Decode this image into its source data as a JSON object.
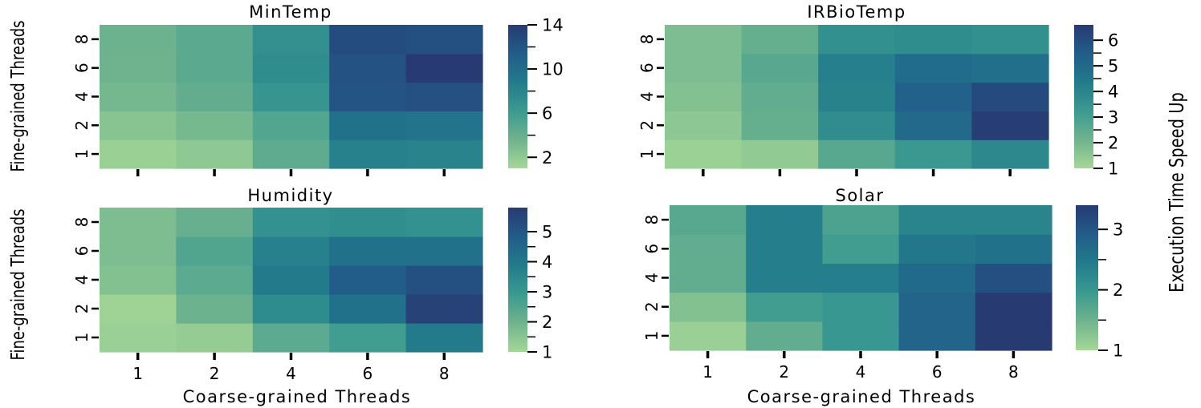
{
  "figure": {
    "common_xlabel": "Coarse-grained Threads",
    "common_ylabel": "Fine-grained Threads",
    "colorbar_label": "Execution Time Speed Up",
    "colormap": "crest",
    "colormap_stops": [
      "#a5d797",
      "#6fb38e",
      "#3a9a90",
      "#227b8b",
      "#225c8a",
      "#273b72"
    ]
  },
  "chart_data": [
    {
      "type": "heatmap",
      "title": "MinTemp",
      "x_categories": [
        "1",
        "2",
        "4",
        "6",
        "8"
      ],
      "y_categories": [
        "1",
        "2",
        "4",
        "6",
        "8"
      ],
      "xlabel": "",
      "ylabel": "Fine-grained Threads",
      "show_xticklabels": false,
      "values": [
        [
          1.5,
          2.1,
          4.4,
          8.3,
          8.1
        ],
        [
          2.4,
          3.2,
          5.0,
          9.6,
          9.5
        ],
        [
          3.3,
          4.2,
          6.6,
          12.0,
          12.3
        ],
        [
          3.6,
          4.6,
          7.3,
          12.2,
          14.0
        ],
        [
          3.7,
          4.6,
          7.0,
          12.7,
          12.4
        ]
      ],
      "colorbar": {
        "min": 1,
        "max": 14,
        "ticks": [
          "2",
          "6",
          "10",
          "14"
        ],
        "tick_values": [
          2,
          6,
          10,
          14
        ],
        "minor_ticks": [
          4,
          8,
          12
        ]
      }
    },
    {
      "type": "heatmap",
      "title": "IRBioTemp",
      "x_categories": [
        "1",
        "2",
        "4",
        "6",
        "8"
      ],
      "y_categories": [
        "1",
        "2",
        "4",
        "6",
        "8"
      ],
      "xlabel": "",
      "ylabel": "",
      "show_xticklabels": false,
      "values": [
        [
          1.2,
          1.4,
          2.6,
          3.3,
          3.9
        ],
        [
          1.5,
          2.3,
          3.7,
          5.0,
          6.5
        ],
        [
          1.7,
          2.4,
          4.1,
          5.3,
          6.1
        ],
        [
          1.8,
          2.6,
          4.2,
          4.9,
          4.8
        ],
        [
          1.8,
          2.3,
          3.6,
          3.7,
          3.6
        ]
      ],
      "colorbar": {
        "min": 1,
        "max": 6.6,
        "ticks": [
          "1",
          "2",
          "3",
          "4",
          "5",
          "6"
        ],
        "tick_values": [
          1,
          2,
          3,
          4,
          5,
          6
        ],
        "minor_ticks": [
          1.5,
          2.5,
          3.5,
          4.5,
          5.5
        ]
      }
    },
    {
      "type": "heatmap",
      "title": "Humidity",
      "x_categories": [
        "1",
        "2",
        "4",
        "6",
        "8"
      ],
      "y_categories": [
        "1",
        "2",
        "4",
        "6",
        "8"
      ],
      "xlabel": "Coarse-grained Threads",
      "ylabel": "Fine-grained Threads",
      "show_xticklabels": true,
      "values": [
        [
          1.2,
          1.3,
          2.3,
          2.8,
          3.9
        ],
        [
          1.1,
          2.0,
          3.4,
          4.2,
          5.6
        ],
        [
          1.6,
          2.3,
          3.9,
          4.8,
          5.2
        ],
        [
          1.7,
          2.5,
          3.7,
          4.2,
          4.2
        ],
        [
          1.7,
          2.1,
          3.2,
          3.3,
          3.2
        ]
      ],
      "colorbar": {
        "min": 1,
        "max": 5.8,
        "ticks": [
          "1",
          "2",
          "3",
          "4",
          "5"
        ],
        "tick_values": [
          1,
          2,
          3,
          4,
          5
        ],
        "minor_ticks": [
          1.5,
          2.5,
          3.5,
          4.5
        ]
      }
    },
    {
      "type": "heatmap",
      "title": "Solar",
      "x_categories": [
        "1",
        "2",
        "4",
        "6",
        "8"
      ],
      "y_categories": [
        "1",
        "2",
        "4",
        "6",
        "8"
      ],
      "xlabel": "Coarse-grained Threads",
      "ylabel": "",
      "show_xticklabels": true,
      "values": [
        [
          1.1,
          1.6,
          2.0,
          2.8,
          3.4
        ],
        [
          1.3,
          1.9,
          2.0,
          2.8,
          3.4
        ],
        [
          1.6,
          2.4,
          2.4,
          2.7,
          3.1
        ],
        [
          1.6,
          2.4,
          1.9,
          2.5,
          2.6
        ],
        [
          1.7,
          2.4,
          1.8,
          2.3,
          2.3
        ]
      ],
      "colorbar": {
        "min": 1,
        "max": 3.4,
        "ticks": [
          "1",
          "2",
          "3"
        ],
        "tick_values": [
          1,
          2,
          3
        ],
        "minor_ticks": [
          1.5,
          2.5
        ]
      }
    }
  ]
}
